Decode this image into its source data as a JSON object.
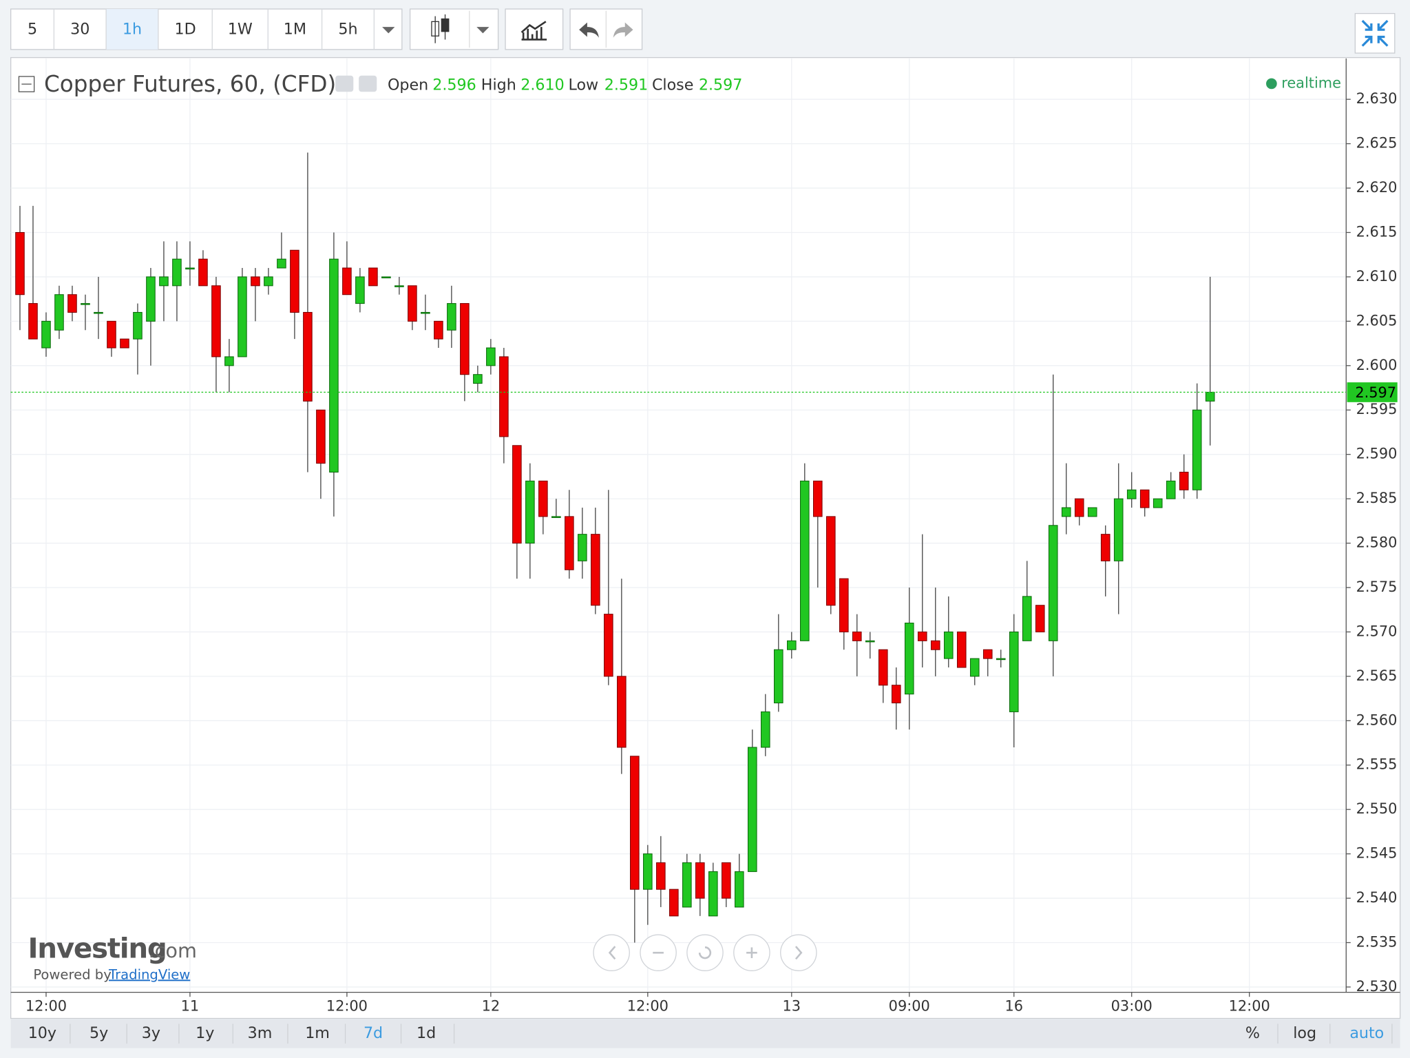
{
  "ui": {
    "intervals": [
      "5",
      "30",
      "1h",
      "1D",
      "1W",
      "1M",
      "5h"
    ],
    "ranges": [
      "10y",
      "5y",
      "3y",
      "1y",
      "3m",
      "1m",
      "7d",
      "1d"
    ],
    "scale_options": [
      "%",
      "log",
      "auto"
    ],
    "status": "realtime",
    "logo_main": "Investing",
    "logo_suffix": ".com",
    "powered_by": "Powered by",
    "powered_link": "TradingView"
  },
  "chart_data": {
    "type": "candlestick",
    "title": "Copper Futures, 60, (CFD)",
    "header": {
      "labels": [
        "Open",
        "High",
        "Low",
        "Close"
      ],
      "values": [
        2.596,
        2.61,
        2.591,
        2.597
      ],
      "value_labels": [
        "2.596",
        "2.610",
        "2.591",
        "2.597"
      ]
    },
    "up_color": "#21c722",
    "down_color": "#ee0000",
    "grid": true,
    "last_price": 2.597,
    "open": [
      2.615,
      2.607,
      2.602,
      2.604,
      2.608,
      2.607,
      2.606,
      2.605,
      2.603,
      2.603,
      2.605,
      2.609,
      2.609,
      2.611,
      2.612,
      2.609,
      2.6,
      2.601,
      2.61,
      2.609,
      2.611,
      2.613,
      2.606,
      2.595,
      2.588,
      2.611,
      2.607,
      2.611,
      2.61,
      2.609,
      2.609,
      2.606,
      2.605,
      2.604,
      2.607,
      2.598,
      2.6,
      2.601,
      2.591,
      2.58,
      2.587,
      2.583,
      2.583,
      2.578,
      2.581,
      2.572,
      2.565,
      2.556,
      2.541,
      2.544,
      2.541,
      2.539,
      2.544,
      2.538,
      2.544,
      2.539,
      2.543,
      2.557,
      2.562,
      2.568,
      2.569,
      2.587,
      2.583,
      2.576,
      2.57,
      2.569,
      2.568,
      2.564,
      2.563,
      2.57,
      2.569,
      2.567,
      2.57,
      2.565,
      2.568,
      2.567,
      2.561,
      2.569,
      2.573,
      2.569,
      2.583,
      2.585,
      2.583,
      2.581,
      2.578,
      2.585,
      2.586,
      2.584,
      2.585,
      2.588,
      2.586,
      2.596
    ],
    "high": [
      2.618,
      2.618,
      2.606,
      2.609,
      2.609,
      2.608,
      2.61,
      2.605,
      2.603,
      2.607,
      2.611,
      2.614,
      2.614,
      2.614,
      2.613,
      2.61,
      2.603,
      2.611,
      2.611,
      2.611,
      2.615,
      2.613,
      2.624,
      2.595,
      2.615,
      2.614,
      2.611,
      2.611,
      2.61,
      2.61,
      2.609,
      2.608,
      2.605,
      2.609,
      2.607,
      2.6,
      2.603,
      2.602,
      2.591,
      2.589,
      2.587,
      2.585,
      2.586,
      2.584,
      2.584,
      2.586,
      2.576,
      2.556,
      2.546,
      2.547,
      2.541,
      2.545,
      2.545,
      2.544,
      2.544,
      2.545,
      2.559,
      2.563,
      2.572,
      2.57,
      2.589,
      2.587,
      2.583,
      2.576,
      2.572,
      2.57,
      2.568,
      2.566,
      2.575,
      2.581,
      2.575,
      2.574,
      2.57,
      2.567,
      2.568,
      2.568,
      2.572,
      2.578,
      2.573,
      2.599,
      2.589,
      2.585,
      2.584,
      2.582,
      2.589,
      2.588,
      2.586,
      2.585,
      2.588,
      2.59,
      2.598,
      2.61
    ],
    "low": [
      2.604,
      2.603,
      2.601,
      2.603,
      2.605,
      2.604,
      2.603,
      2.601,
      2.602,
      2.599,
      2.6,
      2.605,
      2.605,
      2.609,
      2.609,
      2.597,
      2.597,
      2.601,
      2.605,
      2.608,
      2.611,
      2.603,
      2.588,
      2.585,
      2.583,
      2.608,
      2.606,
      2.609,
      2.61,
      2.608,
      2.604,
      2.604,
      2.602,
      2.602,
      2.596,
      2.597,
      2.599,
      2.589,
      2.576,
      2.576,
      2.581,
      2.583,
      2.576,
      2.576,
      2.572,
      2.564,
      2.554,
      2.535,
      2.537,
      2.539,
      2.538,
      2.539,
      2.538,
      2.538,
      2.539,
      2.539,
      2.543,
      2.556,
      2.561,
      2.567,
      2.569,
      2.575,
      2.572,
      2.568,
      2.565,
      2.567,
      2.562,
      2.559,
      2.559,
      2.566,
      2.565,
      2.566,
      2.566,
      2.564,
      2.565,
      2.566,
      2.557,
      2.569,
      2.57,
      2.565,
      2.581,
      2.582,
      2.583,
      2.574,
      2.572,
      2.584,
      2.583,
      2.584,
      2.585,
      2.585,
      2.585,
      2.591
    ],
    "close": [
      2.608,
      2.603,
      2.605,
      2.608,
      2.606,
      2.607,
      2.606,
      2.602,
      2.602,
      2.606,
      2.61,
      2.61,
      2.612,
      2.611,
      2.609,
      2.601,
      2.601,
      2.61,
      2.609,
      2.61,
      2.612,
      2.606,
      2.596,
      2.589,
      2.612,
      2.608,
      2.61,
      2.609,
      2.61,
      2.609,
      2.605,
      2.606,
      2.603,
      2.607,
      2.599,
      2.599,
      2.602,
      2.592,
      2.58,
      2.587,
      2.583,
      2.583,
      2.577,
      2.581,
      2.573,
      2.565,
      2.557,
      2.541,
      2.545,
      2.541,
      2.538,
      2.544,
      2.54,
      2.543,
      2.54,
      2.543,
      2.557,
      2.561,
      2.568,
      2.569,
      2.587,
      2.583,
      2.573,
      2.57,
      2.569,
      2.569,
      2.564,
      2.562,
      2.571,
      2.569,
      2.568,
      2.57,
      2.566,
      2.567,
      2.567,
      2.567,
      2.57,
      2.574,
      2.57,
      2.582,
      2.584,
      2.583,
      2.584,
      2.578,
      2.585,
      2.586,
      2.584,
      2.585,
      2.587,
      2.586,
      2.595,
      2.597
    ],
    "xlim": [
      -0.7,
      101.4
    ],
    "xticks": [
      {
        "value": 2,
        "label": "12:00"
      },
      {
        "value": 13,
        "label": "11"
      },
      {
        "value": 25,
        "label": "12:00"
      },
      {
        "value": 36,
        "label": "12"
      },
      {
        "value": 48,
        "label": "12:00"
      },
      {
        "value": 59,
        "label": "13"
      },
      {
        "value": 68,
        "label": "09:00"
      },
      {
        "value": 76,
        "label": "16"
      },
      {
        "value": 85,
        "label": "03:00"
      },
      {
        "value": 94,
        "label": "12:00"
      }
    ],
    "ylim": [
      2.5294,
      2.6346
    ],
    "yticks": [
      {
        "value": 2.53,
        "label": "2.530"
      },
      2.535,
      {
        "value": 2.54,
        "label": "2.540"
      },
      2.545,
      {
        "value": 2.55,
        "label": "2.550"
      },
      2.555,
      {
        "value": 2.56,
        "label": "2.560"
      },
      2.565,
      {
        "value": 2.57,
        "label": "2.570"
      },
      2.575,
      {
        "value": 2.58,
        "label": "2.580"
      },
      2.585,
      {
        "value": 2.59,
        "label": "2.590"
      },
      2.595,
      {
        "value": 2.6,
        "label": "2.600"
      },
      2.605,
      {
        "value": 2.61,
        "label": "2.610"
      },
      2.615,
      {
        "value": 2.62,
        "label": "2.620"
      },
      2.625,
      {
        "value": 2.63,
        "label": "2.630"
      }
    ]
  }
}
